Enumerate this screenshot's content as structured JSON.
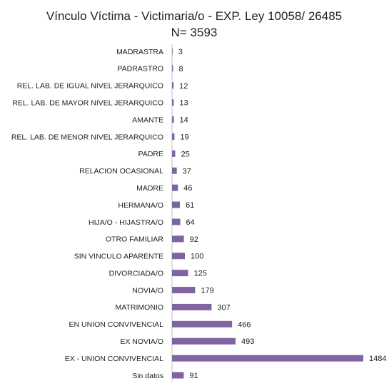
{
  "chart_data": {
    "type": "bar",
    "orientation": "horizontal",
    "title": "Vínculo Víctima - Victimaria/o - EXP. Ley 10058/ 26485",
    "subtitle": "N= 3593",
    "bar_color": "#8064a2",
    "grid": false,
    "legend": "none",
    "xlim": [
      0,
      1484
    ],
    "categories": [
      "MADRASTRA",
      "PADRASTRO",
      "REL. LAB. DE IGUAL NIVEL JERARQUICO",
      "REL. LAB. DE MAYOR NIVEL JERARQUICO",
      "AMANTE",
      "REL. LAB. DE MENOR NIVEL JERARQUICO",
      "PADRE",
      "RELACION OCASIONAL",
      "MADRE",
      "HERMANA/O",
      "HIJA/O - HIJASTRA/O",
      "OTRO FAMILIAR",
      "SIN VINCULO APARENTE",
      "DIVORCIADA/O",
      "NOVIA/O",
      "MATRIMONIO",
      "EN UNION CONVIVENCIAL",
      "EX NOVIA/O",
      "EX - UNION CONVIVENCIAL",
      "Sin datos"
    ],
    "values": [
      3,
      8,
      12,
      13,
      14,
      19,
      25,
      37,
      46,
      61,
      64,
      92,
      100,
      125,
      179,
      307,
      466,
      493,
      1484,
      91
    ],
    "value_labels": [
      "3",
      "8",
      "12",
      "13",
      "14",
      "19",
      "25",
      "37",
      "46",
      "61",
      "64",
      "92",
      "100",
      "125",
      "179",
      "307",
      "466",
      "493",
      "1484",
      "91"
    ]
  }
}
